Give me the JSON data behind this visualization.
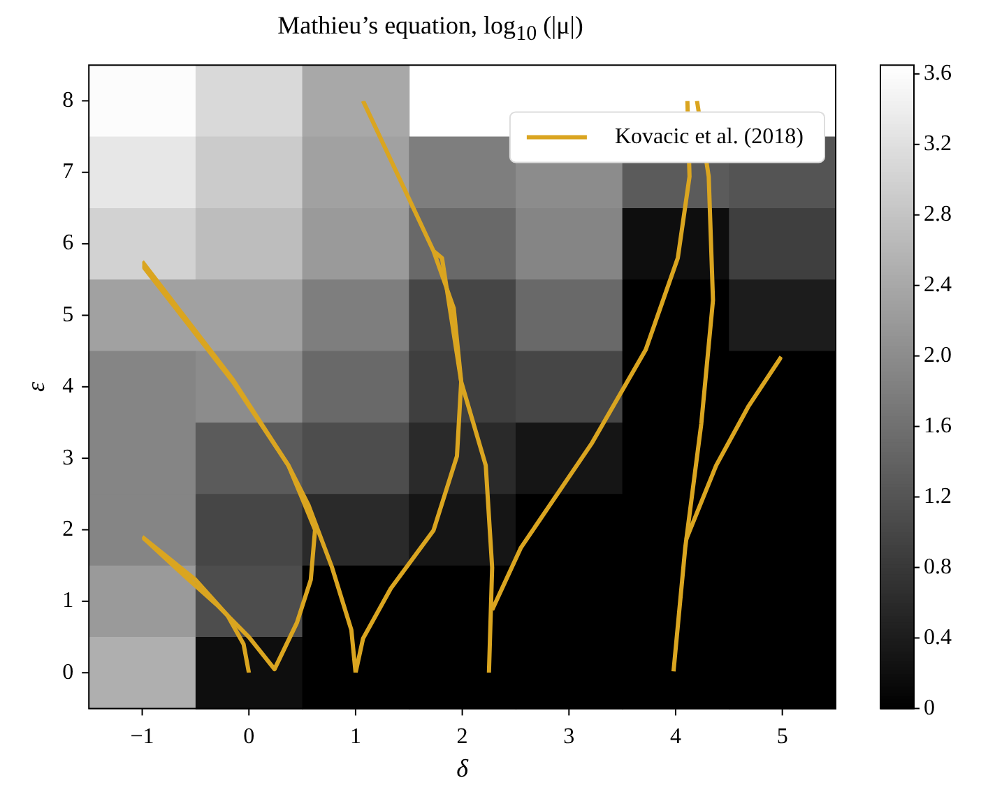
{
  "chart_data": [
    {
      "type": "heatmap",
      "title": "Mathieu’s equation, log$_{10}$ (|μ|)",
      "xlabel": "δ",
      "ylabel": "ε",
      "categories": [
        "−1",
        "0",
        "1",
        "2",
        "3",
        "4",
        "5"
      ],
      "y_categories": [
        "8",
        "7",
        "6",
        "5",
        "4",
        "3",
        "2",
        "1",
        "0"
      ],
      "cells": [
        [
          3.6,
          3.1,
          2.4,
          null,
          null,
          null,
          null
        ],
        [
          3.3,
          2.9,
          2.3,
          1.8,
          2.0,
          1.3,
          1.2
        ],
        [
          3.0,
          2.7,
          2.2,
          1.5,
          1.9,
          0.2,
          0.9
        ],
        [
          2.3,
          2.3,
          1.8,
          1.0,
          1.5,
          0,
          0.4
        ],
        [
          1.9,
          2.0,
          1.5,
          0.9,
          1.0,
          0,
          0
        ],
        [
          1.9,
          1.3,
          1.1,
          0.6,
          0.3,
          0,
          0
        ],
        [
          1.9,
          1.0,
          0.6,
          0.3,
          0,
          0,
          0
        ],
        [
          2.2,
          1.1,
          0,
          0,
          0,
          0,
          0
        ],
        [
          2.5,
          0.2,
          0,
          0,
          0,
          0,
          0
        ]
      ],
      "clim": [
        0,
        3.65
      ],
      "cticks": [
        {
          "value": 0,
          "label": "0"
        },
        {
          "value": 0.4,
          "label": "0.4"
        },
        {
          "value": 0.8,
          "label": "0.8"
        },
        {
          "value": 1.2,
          "label": "1.2"
        },
        {
          "value": 1.6,
          "label": "1.6"
        },
        {
          "value": 2.0,
          "label": "2.0"
        },
        {
          "value": 2.4,
          "label": "2.4"
        },
        {
          "value": 2.8,
          "label": "2.8"
        },
        {
          "value": 3.2,
          "label": "3.2"
        },
        {
          "value": 3.6,
          "label": "3.6"
        }
      ]
    },
    {
      "type": "line",
      "xlim": [
        -1,
        5
      ],
      "xticks": [
        -1,
        0,
        1,
        2,
        3,
        4,
        5
      ],
      "ylim": [
        0,
        8
      ],
      "yticks": [
        0,
        1,
        2,
        3,
        4,
        5,
        6,
        7,
        8
      ],
      "tick_labels": false,
      "legend": "top right",
      "series": [
        {
          "name": "Kovacic et al. (2018)",
          "color": "#daa520",
          "x": [
            -1,
            -0.5,
            -0.2,
            -0.05,
            0
          ],
          "values": [
            1.9,
            1.3,
            0.8,
            0.4,
            0
          ]
        },
        {
          "color": "#daa520",
          "x": [
            -1,
            -0.6,
            -0.3,
            0,
            0.24,
            0.45,
            0.58,
            0.62,
            0.51,
            0.37,
            -0.15,
            -1
          ],
          "values": [
            1.9,
            1.35,
            0.95,
            0.5,
            0.05,
            0.7,
            1.3,
            2.0,
            2.4,
            2.9,
            4.1,
            5.75
          ]
        },
        {
          "color": "#daa520",
          "x": [
            -1,
            -0.15,
            0.37,
            0.56,
            0.78,
            0.96,
            1.0
          ],
          "values": [
            5.7,
            4.07,
            2.9,
            2.34,
            1.47,
            0.6,
            0
          ]
        },
        {
          "color": "#daa520",
          "x": [
            1.07,
            1.73,
            1.92,
            1.99,
            1.95,
            1.73,
            1.33,
            1.07,
            1.0
          ],
          "values": [
            8,
            5.9,
            5.1,
            4.07,
            3.03,
            1.99,
            1.18,
            0.48,
            0
          ]
        },
        {
          "color": "#daa520",
          "x": [
            1.73,
            1.81,
            1.99,
            2.22,
            2.28,
            2.25
          ],
          "values": [
            5.9,
            5.8,
            4.07,
            2.9,
            1.47,
            0
          ]
        },
        {
          "color": "#daa520",
          "x": [
            2.28,
            2.55,
            3.21,
            3.72,
            4.02,
            4.13,
            4.11
          ],
          "values": [
            0.88,
            1.75,
            3.2,
            4.52,
            5.8,
            6.94,
            8
          ]
        },
        {
          "color": "#daa520",
          "x": [
            3.98,
            4.09,
            4.24,
            4.35,
            4.31,
            4.2
          ],
          "values": [
            0.02,
            1.75,
            3.48,
            5.21,
            6.94,
            8
          ]
        },
        {
          "color": "#daa520",
          "x": [
            4.1,
            4.38,
            4.68,
            4.99
          ],
          "values": [
            1.87,
            2.9,
            3.72,
            4.42
          ]
        }
      ]
    }
  ]
}
